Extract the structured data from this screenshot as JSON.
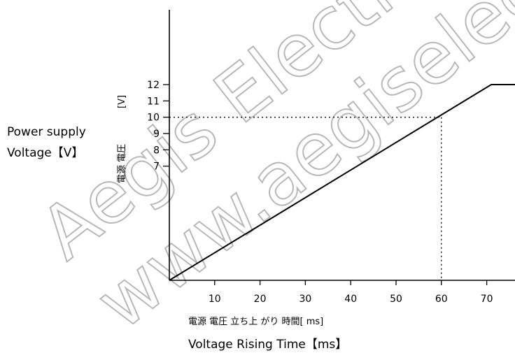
{
  "watermarks": [
    "Aegis Electronics",
    "www.aegiselect.com"
  ],
  "chart_data": {
    "type": "line",
    "x": [
      0,
      71,
      80
    ],
    "y": [
      0,
      12,
      12
    ],
    "xlim": [
      0,
      80
    ],
    "ylim": [
      0,
      14.3
    ],
    "xticks": [
      10,
      20,
      30,
      40,
      50,
      60,
      70
    ],
    "yticks": [
      7,
      8,
      9,
      10,
      11,
      12
    ],
    "ylabel_en_lines": [
      "Power supply",
      "Voltage【V】"
    ],
    "ylabel_jp": "電源 電圧",
    "ylabel_unit": "[V]",
    "xlabel_jp": "電源  電圧 立ち上 がり 時間[ ms]",
    "xlabel_en": "Voltage Rising Time【ms】",
    "reference_point": {
      "x": 60,
      "y": 10
    },
    "grid": false,
    "colors": {
      "line": "#000000",
      "watermark": "#b3b3b3"
    }
  }
}
